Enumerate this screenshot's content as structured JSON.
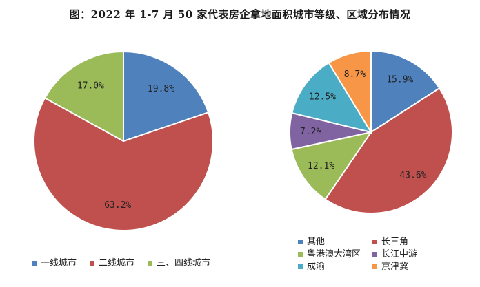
{
  "title": "图：2022 年 1-7 月 50 家代表房企拿地面积城市等级、区域分布情况",
  "chart_data": [
    {
      "type": "pie",
      "slices": [
        {
          "label": "一线城市",
          "value": 19.8,
          "display": "19.8%",
          "color": "#4F81BD"
        },
        {
          "label": "二线城市",
          "value": 63.2,
          "display": "63.2%",
          "color": "#C0504D"
        },
        {
          "label": "三、四线城市",
          "value": 17.0,
          "display": "17.0%",
          "color": "#9BBB59"
        }
      ],
      "legend_position": "bottom"
    },
    {
      "type": "pie",
      "slices": [
        {
          "label": "其他",
          "value": 15.9,
          "display": "15.9%",
          "color": "#4F81BD"
        },
        {
          "label": "长三角",
          "value": 43.6,
          "display": "43.6%",
          "color": "#C0504D"
        },
        {
          "label": "粤港澳大湾区",
          "value": 12.1,
          "display": "12.1%",
          "color": "#9BBB59"
        },
        {
          "label": "长江中游",
          "value": 7.2,
          "display": "7.2%",
          "color": "#8064A2"
        },
        {
          "label": "成渝",
          "value": 12.5,
          "display": "12.5%",
          "color": "#4BACC6"
        },
        {
          "label": "京津冀",
          "value": 8.7,
          "display": "8.7%",
          "color": "#F79646"
        }
      ],
      "legend_position": "bottom"
    }
  ]
}
